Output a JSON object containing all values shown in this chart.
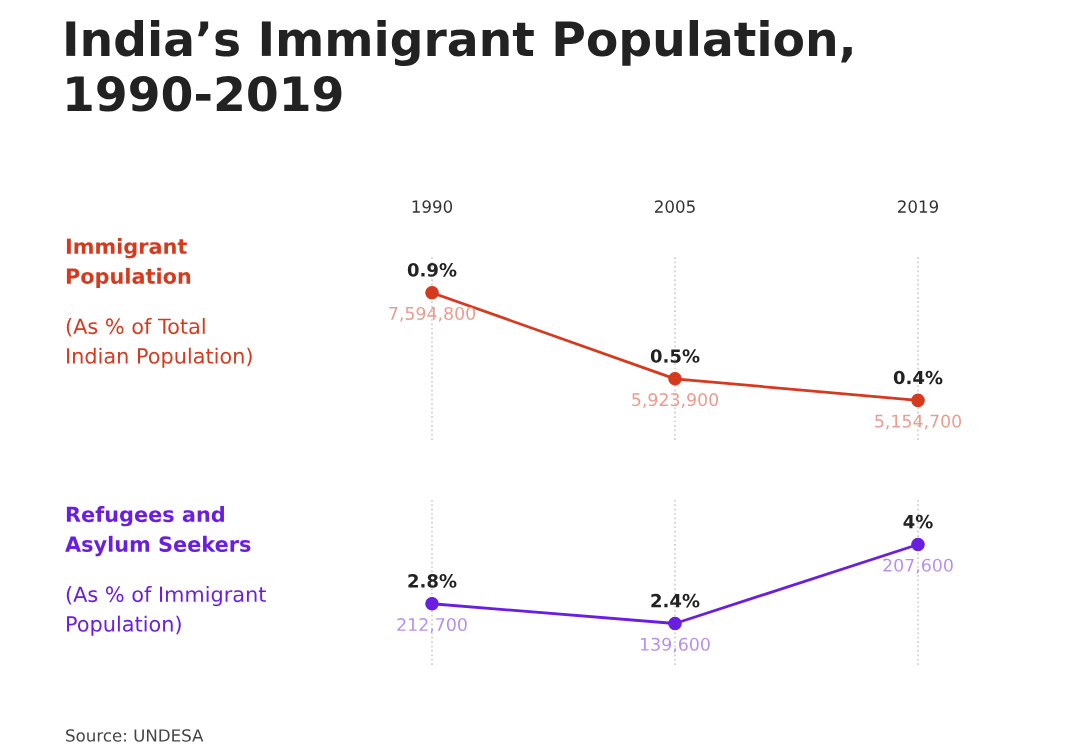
{
  "chart_data": [
    {
      "type": "line",
      "title": "India’s Immigrant Population,\n1990-2019",
      "subtitle": "(As % of Total\nIndian Population)",
      "categories": [
        "1990",
        "2005",
        "2019"
      ],
      "series": [
        {
          "name": "Immigrant\nPopulation",
          "color": "#d63a1e",
          "values": [
            0.9,
            0.5,
            0.4
          ],
          "value_labels": [
            "0.9%",
            "0.5%",
            "0.4%"
          ]
        }
      ],
      "annotations": [
        {
          "text": "7,594,800",
          "x": "1990",
          "y": 0.9
        },
        {
          "text": "5,923,900",
          "x": "2005",
          "y": 0.5
        },
        {
          "text": "5,154,700",
          "x": "2019",
          "y": 0.4
        }
      ],
      "ylim": [
        0.216,
        1.075
      ],
      "grid": "x",
      "marker": "circle",
      "line_style": "solid",
      "tick_labels": "x"
    },
    {
      "type": "line",
      "subtitle": "(As % of Immigrant\nPopulation)",
      "categories": [
        "1990",
        "2005",
        "2019"
      ],
      "series": [
        {
          "name": "Refugees and\nAsylum Seekers",
          "color": "#6a1fe0",
          "values": [
            2.8,
            2.4,
            4
          ],
          "value_labels": [
            "2.8%",
            "2.4%",
            "4%"
          ]
        }
      ],
      "annotations": [
        {
          "text": "212,700",
          "x": "1990",
          "y": 2.8
        },
        {
          "text": "139,600",
          "x": "2005",
          "y": 2.4
        },
        {
          "text": "207,600",
          "x": "2019",
          "y": 4
        },
        "Source: UNDESA"
      ],
      "ylim": [
        1.56,
        4.9
      ],
      "grid": "x",
      "marker": "circle",
      "line_style": "solid",
      "tick_labels": false
    }
  ]
}
